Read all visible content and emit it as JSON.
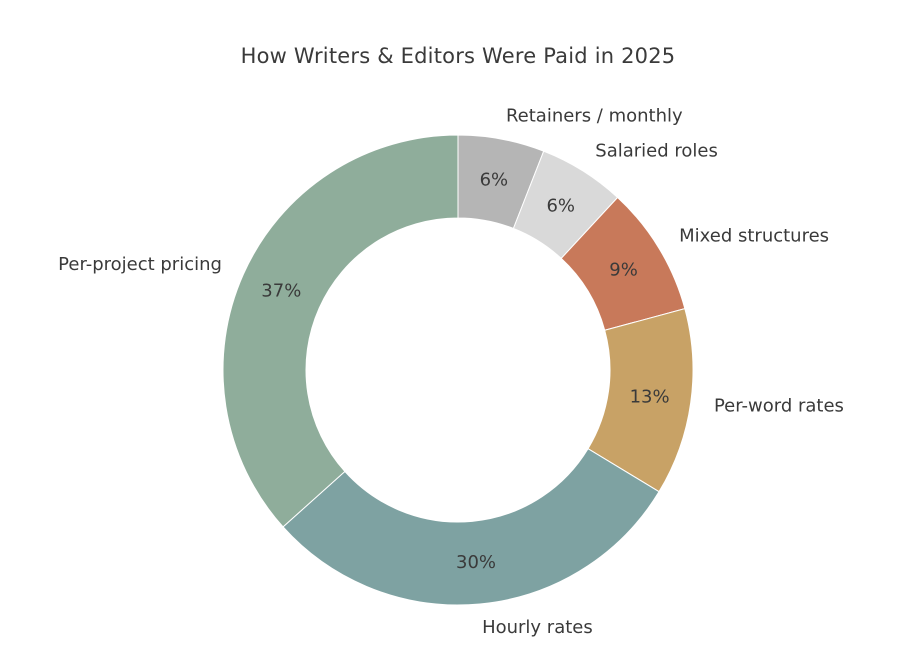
{
  "chart_data": {
    "type": "pie",
    "donut": true,
    "title": "How Writers & Editors Were Paid in 2025",
    "start_angle_deg": 90,
    "direction": "clockwise",
    "slices": [
      {
        "label": "Retainers / monthly",
        "value": 6,
        "value_label": "6%",
        "color": "#b5b5b5"
      },
      {
        "label": "Salaried roles",
        "value": 6,
        "value_label": "6%",
        "color": "#d9d9d9"
      },
      {
        "label": "Mixed structures",
        "value": 9,
        "value_label": "9%",
        "color": "#c8795a"
      },
      {
        "label": "Per-word rates",
        "value": 13,
        "value_label": "13%",
        "color": "#c8a266"
      },
      {
        "label": "Hourly rates",
        "value": 30,
        "value_label": "30%",
        "color": "#7ea2a2"
      },
      {
        "label": "Per-project pricing",
        "value": 37,
        "value_label": "37%",
        "color": "#8fad9b"
      }
    ]
  }
}
